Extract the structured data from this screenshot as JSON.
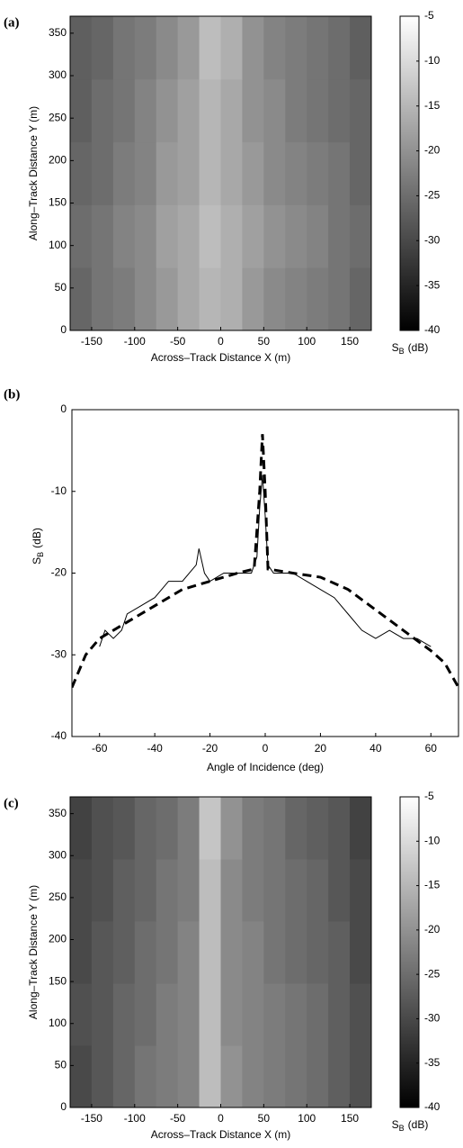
{
  "chart_data": [
    {
      "type": "heatmap",
      "panel_label": "(a)",
      "xlabel": "Across–Track Distance X  (m)",
      "ylabel": "Along–Track Distance Y  (m)",
      "x_edges": [
        -175,
        -150,
        -125,
        -100,
        -75,
        -50,
        -25,
        0,
        25,
        50,
        75,
        100,
        125,
        150,
        175
      ],
      "y_edges": [
        0,
        74,
        148,
        222,
        296,
        370
      ],
      "values": [
        [
          -26,
          -24,
          -23,
          -21,
          -19,
          -17,
          -15,
          -16,
          -19,
          -21,
          -22,
          -23,
          -24,
          -26
        ],
        [
          -25,
          -24,
          -22,
          -21,
          -18,
          -17,
          -14,
          -16,
          -18,
          -20,
          -21,
          -22,
          -24,
          -25
        ],
        [
          -26,
          -25,
          -23,
          -22,
          -19,
          -18,
          -15,
          -17,
          -19,
          -21,
          -22,
          -23,
          -24,
          -26
        ],
        [
          -27,
          -25,
          -24,
          -22,
          -20,
          -18,
          -15,
          -17,
          -20,
          -21,
          -23,
          -24,
          -25,
          -26
        ],
        [
          -27,
          -26,
          -24,
          -23,
          -21,
          -19,
          -14,
          -16,
          -20,
          -22,
          -23,
          -24,
          -25,
          -27
        ]
      ],
      "xlim": [
        -175,
        175
      ],
      "ylim": [
        0,
        370
      ],
      "xticks": [
        -150,
        -100,
        -50,
        0,
        50,
        100,
        150
      ],
      "yticks": [
        0,
        50,
        100,
        150,
        200,
        250,
        300,
        350
      ],
      "clim": [
        -40,
        -5
      ],
      "cticks": [
        -5,
        -10,
        -15,
        -20,
        -25,
        -30,
        -35,
        -40
      ],
      "colorbar_label": {
        "main": "S",
        "sub": "B",
        "unit": "(dB)"
      }
    },
    {
      "type": "line",
      "panel_label": "(b)",
      "xlabel": "Angle of Incidence  (deg)",
      "ylabel": {
        "main": "S",
        "sub": "B",
        "unit": "(dB)"
      },
      "xlim": [
        -70,
        70
      ],
      "ylim": [
        -40,
        0
      ],
      "xticks": [
        -60,
        -40,
        -20,
        0,
        20,
        40,
        60
      ],
      "yticks": [
        -40,
        -30,
        -20,
        -10,
        0
      ],
      "series": [
        {
          "color": "#000",
          "dash": false,
          "x": [
            -60,
            -58,
            -55,
            -52,
            -50,
            -45,
            -40,
            -35,
            -30,
            -25,
            -24,
            -22,
            -20,
            -15,
            -10,
            -5,
            -3,
            -2,
            -1,
            0,
            1,
            3,
            5,
            10,
            15,
            20,
            25,
            30,
            35,
            40,
            45,
            50,
            55,
            60
          ],
          "values": [
            -29,
            -27,
            -28,
            -27,
            -25,
            -24,
            -23,
            -21,
            -21,
            -19,
            -17,
            -20,
            -21,
            -20,
            -20,
            -20,
            -18,
            -12,
            -8,
            -13,
            -19,
            -20,
            -20,
            -20,
            -21,
            -22,
            -23,
            -25,
            -27,
            -28,
            -27,
            -28,
            -28,
            -29
          ]
        },
        {
          "color": "#000",
          "dash": true,
          "x": [
            -70,
            -65,
            -60,
            -50,
            -40,
            -30,
            -20,
            -10,
            -4,
            -2,
            -1,
            0,
            1,
            10,
            20,
            30,
            40,
            50,
            60,
            65,
            70
          ],
          "values": [
            -34,
            -30,
            -28,
            -26,
            -24,
            -22,
            -21,
            -20,
            -19.5,
            -10,
            -3,
            -10,
            -19.5,
            -20,
            -20.5,
            -22,
            -24.5,
            -27,
            -29.5,
            -31,
            -34
          ]
        }
      ]
    },
    {
      "type": "heatmap",
      "panel_label": "(c)",
      "xlabel": "Across–Track Distance X  (m)",
      "ylabel": "Along–Track Distance Y  (m)",
      "x_edges": [
        -175,
        -150,
        -125,
        -100,
        -75,
        -50,
        -25,
        0,
        25,
        50,
        75,
        100,
        125,
        150,
        175
      ],
      "y_edges": [
        0,
        74,
        148,
        222,
        296,
        370
      ],
      "values": [
        [
          -30,
          -28,
          -26,
          -24,
          -23,
          -22,
          -14,
          -20,
          -22,
          -23,
          -24,
          -25,
          -27,
          -29
        ],
        [
          -29,
          -28,
          -26,
          -25,
          -23,
          -22,
          -14,
          -21,
          -22,
          -23,
          -24,
          -25,
          -27,
          -29
        ],
        [
          -30,
          -28,
          -27,
          -25,
          -24,
          -22,
          -14,
          -21,
          -22,
          -24,
          -25,
          -26,
          -27,
          -30
        ],
        [
          -30,
          -29,
          -27,
          -26,
          -24,
          -23,
          -14,
          -21,
          -23,
          -24,
          -25,
          -26,
          -28,
          -30
        ],
        [
          -31,
          -29,
          -28,
          -26,
          -25,
          -23,
          -13,
          -20,
          -23,
          -24,
          -26,
          -27,
          -28,
          -31
        ]
      ],
      "xlim": [
        -175,
        175
      ],
      "ylim": [
        0,
        370
      ],
      "xticks": [
        -150,
        -100,
        -50,
        0,
        50,
        100,
        150
      ],
      "yticks": [
        0,
        50,
        100,
        150,
        200,
        250,
        300,
        350
      ],
      "clim": [
        -40,
        -5
      ],
      "cticks": [
        -5,
        -10,
        -15,
        -20,
        -25,
        -30,
        -35,
        -40
      ],
      "colorbar_label": {
        "main": "S",
        "sub": "B",
        "unit": "(dB)"
      }
    }
  ]
}
